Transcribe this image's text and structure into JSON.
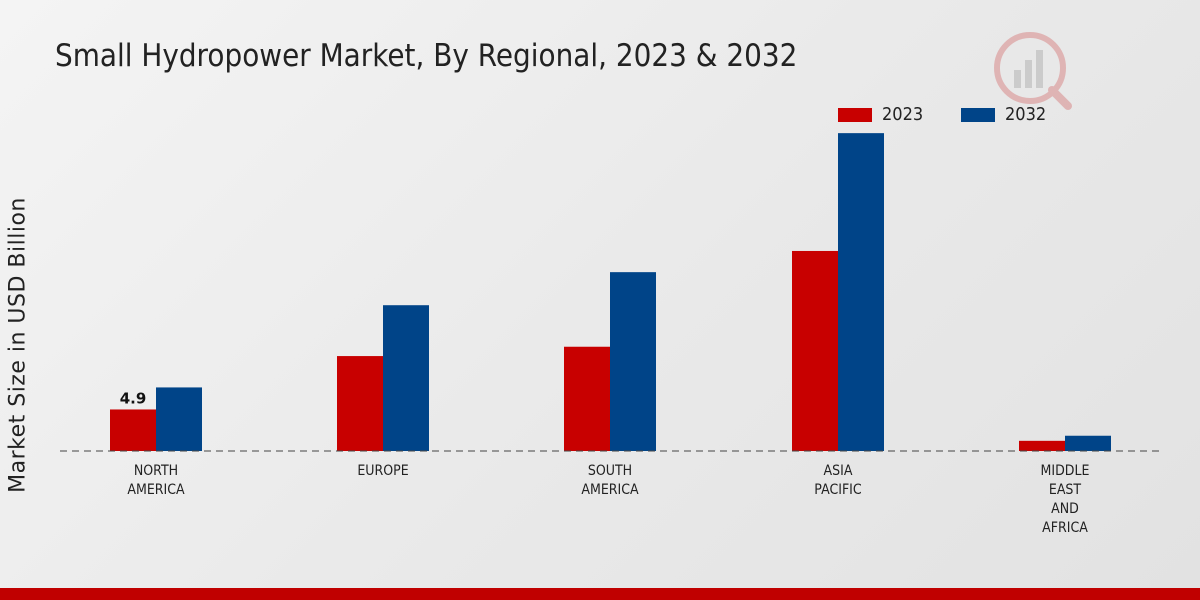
{
  "title": "Small Hydropower Market, By Regional, 2023 & 2032",
  "colors": {
    "s2023": "#c80000",
    "s2032": "#004488",
    "accent": "#c00000"
  },
  "chart_data": {
    "type": "bar",
    "title": "Small Hydropower Market, By Regional, 2023 & 2032",
    "xlabel": "",
    "ylabel": "Market Size in USD Billion",
    "categories": [
      [
        "NORTH",
        "AMERICA"
      ],
      [
        "EUROPE"
      ],
      [
        "SOUTH",
        "AMERICA"
      ],
      [
        "ASIA",
        "PACIFIC"
      ],
      [
        "MIDDLE",
        "EAST",
        "AND",
        "AFRICA"
      ]
    ],
    "series": [
      {
        "name": "2023",
        "values": [
          4.9,
          11.2,
          12.3,
          23.6,
          1.2
        ]
      },
      {
        "name": "2032",
        "values": [
          7.5,
          17.2,
          21.1,
          37.5,
          1.8
        ]
      }
    ],
    "data_labels": [
      {
        "series": 0,
        "index": 0,
        "text": "4.9"
      }
    ],
    "ylim": [
      0,
      42
    ],
    "legend": "top-right",
    "grid": false
  }
}
